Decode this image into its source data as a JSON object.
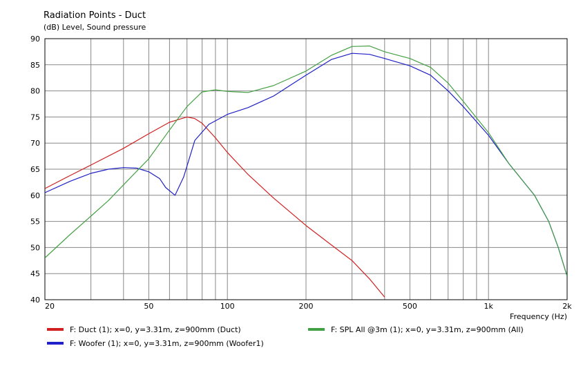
{
  "chart_data": {
    "type": "line",
    "title": "Radiation Points - Duct",
    "ylabel": "(dB)  Level, Sound pressure",
    "xlabel": "Frequency  (Hz)",
    "xscale": "log",
    "xlim": [
      20,
      2000
    ],
    "ylim": [
      40,
      90
    ],
    "grid": true,
    "x_ticks": [
      {
        "value": 20,
        "label": "20"
      },
      {
        "value": 50,
        "label": "50"
      },
      {
        "value": 100,
        "label": "100"
      },
      {
        "value": 200,
        "label": "200"
      },
      {
        "value": 500,
        "label": "500"
      },
      {
        "value": 1000,
        "label": "1k"
      },
      {
        "value": 2000,
        "label": "2k"
      }
    ],
    "y_ticks": [
      {
        "value": 40,
        "label": "40"
      },
      {
        "value": 45,
        "label": "45"
      },
      {
        "value": 50,
        "label": "50"
      },
      {
        "value": 55,
        "label": "55"
      },
      {
        "value": 60,
        "label": "60"
      },
      {
        "value": 65,
        "label": "65"
      },
      {
        "value": 70,
        "label": "70"
      },
      {
        "value": 75,
        "label": "75"
      },
      {
        "value": 80,
        "label": "80"
      },
      {
        "value": 85,
        "label": "85"
      },
      {
        "value": 90,
        "label": "90"
      }
    ],
    "legend_position": "bottom",
    "series": [
      {
        "name": "F: Duct (1); x=0, y=3.31m, z=900mm  (Duct)",
        "color": "#d02020",
        "points": [
          [
            20,
            61.3
          ],
          [
            25,
            63.8
          ],
          [
            30,
            65.8
          ],
          [
            40,
            69.0
          ],
          [
            50,
            71.8
          ],
          [
            60,
            74.0
          ],
          [
            70,
            75.0
          ],
          [
            75,
            74.7
          ],
          [
            80,
            73.8
          ],
          [
            90,
            71.0
          ],
          [
            100,
            68.2
          ],
          [
            120,
            64.0
          ],
          [
            150,
            59.5
          ],
          [
            200,
            54.2
          ],
          [
            250,
            50.5
          ],
          [
            300,
            47.5
          ],
          [
            350,
            44.0
          ],
          [
            400,
            40.5
          ]
        ]
      },
      {
        "name": "F: Woofer (1); x=0, y=3.31m, z=900mm  (Woofer1)",
        "color": "#2020c8",
        "points": [
          [
            20,
            60.5
          ],
          [
            25,
            62.7
          ],
          [
            30,
            64.2
          ],
          [
            35,
            65.0
          ],
          [
            40,
            65.3
          ],
          [
            45,
            65.2
          ],
          [
            50,
            64.5
          ],
          [
            55,
            63.2
          ],
          [
            58,
            61.5
          ],
          [
            63,
            60.0
          ],
          [
            68,
            63.5
          ],
          [
            75,
            70.5
          ],
          [
            85,
            73.6
          ],
          [
            100,
            75.5
          ],
          [
            120,
            76.8
          ],
          [
            150,
            79.0
          ],
          [
            200,
            83.0
          ],
          [
            250,
            86.0
          ],
          [
            300,
            87.2
          ],
          [
            350,
            87.0
          ],
          [
            400,
            86.2
          ],
          [
            500,
            84.8
          ],
          [
            600,
            83.0
          ],
          [
            700,
            80.0
          ],
          [
            800,
            77.0
          ],
          [
            1000,
            71.5
          ],
          [
            1200,
            66.0
          ],
          [
            1500,
            60.0
          ],
          [
            1700,
            55.0
          ],
          [
            1850,
            50.0
          ],
          [
            2000,
            44.5
          ]
        ]
      },
      {
        "name": "F: SPL All @3m (1); x=0, y=3.31m, z=900mm  (All)",
        "color": "#44a044",
        "points": [
          [
            20,
            48.0
          ],
          [
            25,
            52.5
          ],
          [
            30,
            56.0
          ],
          [
            35,
            59.0
          ],
          [
            40,
            62.0
          ],
          [
            50,
            67.0
          ],
          [
            60,
            72.5
          ],
          [
            70,
            77.0
          ],
          [
            80,
            79.8
          ],
          [
            90,
            80.2
          ],
          [
            100,
            79.9
          ],
          [
            120,
            79.7
          ],
          [
            150,
            81.0
          ],
          [
            200,
            83.8
          ],
          [
            250,
            86.8
          ],
          [
            300,
            88.5
          ],
          [
            350,
            88.6
          ],
          [
            400,
            87.5
          ],
          [
            500,
            86.2
          ],
          [
            600,
            84.5
          ],
          [
            700,
            81.5
          ],
          [
            800,
            78.0
          ],
          [
            1000,
            72.0
          ],
          [
            1200,
            66.0
          ],
          [
            1500,
            60.0
          ],
          [
            1700,
            55.0
          ],
          [
            1850,
            50.0
          ],
          [
            2000,
            44.5
          ]
        ]
      }
    ]
  }
}
